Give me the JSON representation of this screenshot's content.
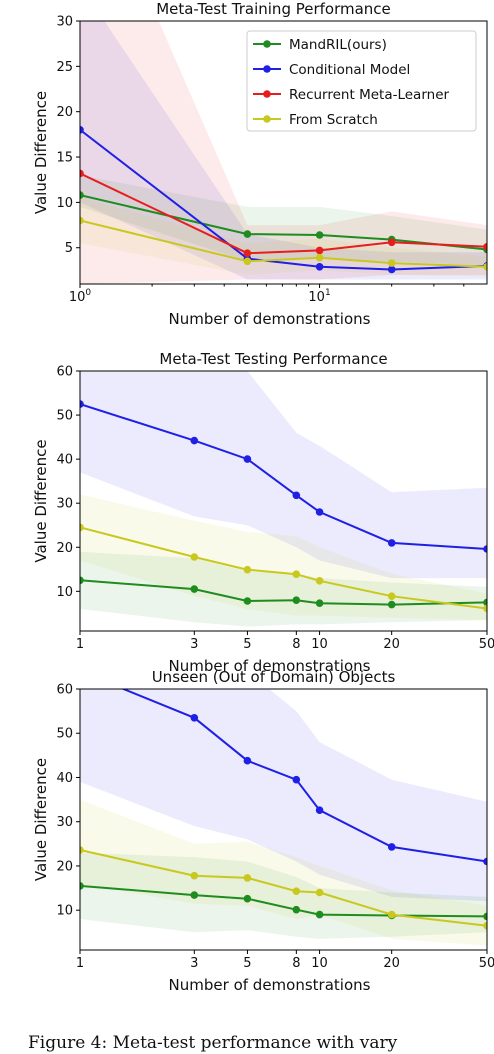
{
  "legend": [
    "MandRIL(ours)",
    "Conditional Model",
    "Recurrent Meta-Learner",
    "From Scratch"
  ],
  "caption": "Figure 4: Meta-test performance with vary",
  "colors": {
    "MandRIL(ours)": "#1e8c1e",
    "Conditional Model": "#1f1fe6",
    "Recurrent Meta-Learner": "#e61e1e",
    "From Scratch": "#c8c81e"
  },
  "chart_data": [
    {
      "type": "line",
      "title": "Meta-Test Training Performance",
      "xlabel": "Number of demonstrations",
      "ylabel": "Value Difference",
      "xscale": "log",
      "xlim": [
        1,
        50
      ],
      "ylim": [
        1,
        30
      ],
      "xticks": [
        1,
        10
      ],
      "xticklabels": [
        "10^0",
        "10^1"
      ],
      "yticks": [
        5,
        10,
        15,
        20,
        25,
        30
      ],
      "legend_loc": "upper right",
      "series": [
        {
          "name": "MandRIL(ours)",
          "x": [
            1,
            5,
            10,
            20,
            50
          ],
          "y": [
            10.8,
            6.5,
            6.4,
            5.9,
            4.8
          ],
          "lo": [
            9.5,
            3.5,
            3.8,
            3.5,
            3.0
          ],
          "hi": [
            13.0,
            9.5,
            9.5,
            8.5,
            7.0
          ]
        },
        {
          "name": "Conditional Model",
          "x": [
            1,
            5,
            10,
            20,
            50
          ],
          "y": [
            18.0,
            3.8,
            2.9,
            2.6,
            3.0
          ],
          "lo": [
            10.0,
            1.5,
            1.5,
            1.5,
            1.5
          ],
          "hi": [
            34.0,
            6.5,
            5.0,
            4.5,
            4.5
          ]
        },
        {
          "name": "Recurrent Meta-Learner",
          "x": [
            1,
            5,
            10,
            20,
            50
          ],
          "y": [
            13.2,
            4.4,
            4.7,
            5.6,
            5.1
          ],
          "lo": [
            1.0,
            1.5,
            1.5,
            2.0,
            2.0
          ],
          "hi": [
            50.0,
            7.5,
            7.5,
            9.0,
            7.5
          ]
        },
        {
          "name": "From Scratch",
          "x": [
            1,
            5,
            10,
            20,
            50
          ],
          "y": [
            8.0,
            3.5,
            3.9,
            3.3,
            2.9
          ],
          "lo": [
            5.5,
            2.0,
            2.5,
            2.0,
            1.8
          ],
          "hi": [
            10.5,
            5.5,
            6.0,
            5.0,
            4.0
          ]
        }
      ]
    },
    {
      "type": "line",
      "title": "Meta-Test Testing Performance",
      "xlabel": "Number of demonstrations",
      "ylabel": "Value Difference",
      "xscale": "log",
      "xlim": [
        1,
        50
      ],
      "ylim": [
        1,
        60
      ],
      "xticks": [
        1,
        3,
        5,
        8,
        10,
        20,
        50
      ],
      "xticklabels": [
        "1",
        "3",
        "5",
        "8",
        "10",
        "20",
        "50"
      ],
      "yticks": [
        10,
        20,
        30,
        40,
        50,
        60
      ],
      "series": [
        {
          "name": "MandRIL(ours)",
          "x": [
            1,
            3,
            5,
            8,
            10,
            20,
            50
          ],
          "y": [
            12.5,
            10.5,
            7.8,
            8.0,
            7.3,
            7.0,
            7.5
          ],
          "lo": [
            6.0,
            3.0,
            2.0,
            2.5,
            2.5,
            3.0,
            3.5
          ],
          "hi": [
            19.0,
            17.5,
            14.5,
            14.0,
            13.0,
            12.0,
            11.0
          ]
        },
        {
          "name": "Conditional Model",
          "x": [
            1,
            3,
            5,
            8,
            10,
            20,
            50
          ],
          "y": [
            52.5,
            44.2,
            40.0,
            31.8,
            28.0,
            21.0,
            19.6
          ],
          "lo": [
            37.0,
            27.0,
            25.0,
            20.0,
            17.0,
            13.0,
            13.0
          ],
          "hi": [
            68.0,
            62.0,
            60.0,
            46.0,
            43.0,
            32.5,
            33.5
          ]
        },
        {
          "name": "From Scratch",
          "x": [
            1,
            3,
            5,
            8,
            10,
            20,
            50
          ],
          "y": [
            24.5,
            17.8,
            14.9,
            13.9,
            12.4,
            8.9,
            6.1
          ],
          "lo": [
            17.0,
            9.0,
            6.0,
            4.5,
            4.5,
            4.0,
            3.5
          ],
          "hi": [
            32.0,
            26.0,
            23.5,
            22.5,
            20.0,
            14.0,
            9.5
          ]
        }
      ]
    },
    {
      "type": "line",
      "title": "Unseen (Out of Domain) Objects",
      "xlabel": "Number of demonstrations",
      "ylabel": "Value Difference",
      "xscale": "log",
      "xlim": [
        1,
        50
      ],
      "ylim": [
        1,
        60
      ],
      "xticks": [
        1,
        3,
        5,
        8,
        10,
        20,
        50
      ],
      "xticklabels": [
        "1",
        "3",
        "5",
        "8",
        "10",
        "20",
        "50"
      ],
      "yticks": [
        10,
        20,
        30,
        40,
        50,
        60
      ],
      "series": [
        {
          "name": "MandRIL(ours)",
          "x": [
            1,
            3,
            5,
            8,
            10,
            20,
            50
          ],
          "y": [
            15.5,
            13.4,
            12.6,
            10.1,
            9.0,
            8.8,
            8.6
          ],
          "lo": [
            8.0,
            5.0,
            5.5,
            4.0,
            3.5,
            4.0,
            5.0
          ],
          "hi": [
            23.0,
            22.0,
            21.0,
            17.5,
            15.0,
            14.0,
            13.0
          ]
        },
        {
          "name": "Conditional Model",
          "x": [
            1,
            3,
            5,
            8,
            10,
            20,
            50
          ],
          "y": [
            64.0,
            53.5,
            43.8,
            39.5,
            32.6,
            24.3,
            21.0
          ],
          "lo": [
            39.0,
            29.0,
            26.0,
            21.0,
            18.0,
            13.0,
            12.0
          ],
          "hi": [
            85.0,
            72.0,
            64.0,
            55.0,
            48.0,
            39.5,
            34.5
          ]
        },
        {
          "name": "From Scratch",
          "x": [
            1,
            3,
            5,
            8,
            10,
            20,
            50
          ],
          "y": [
            23.6,
            17.8,
            17.3,
            14.3,
            14.0,
            9.0,
            6.5
          ],
          "lo": [
            16.0,
            11.5,
            11.0,
            8.0,
            9.0,
            3.5,
            2.0
          ],
          "hi": [
            35.0,
            25.0,
            25.5,
            22.0,
            20.0,
            14.5,
            11.0
          ]
        }
      ]
    }
  ]
}
